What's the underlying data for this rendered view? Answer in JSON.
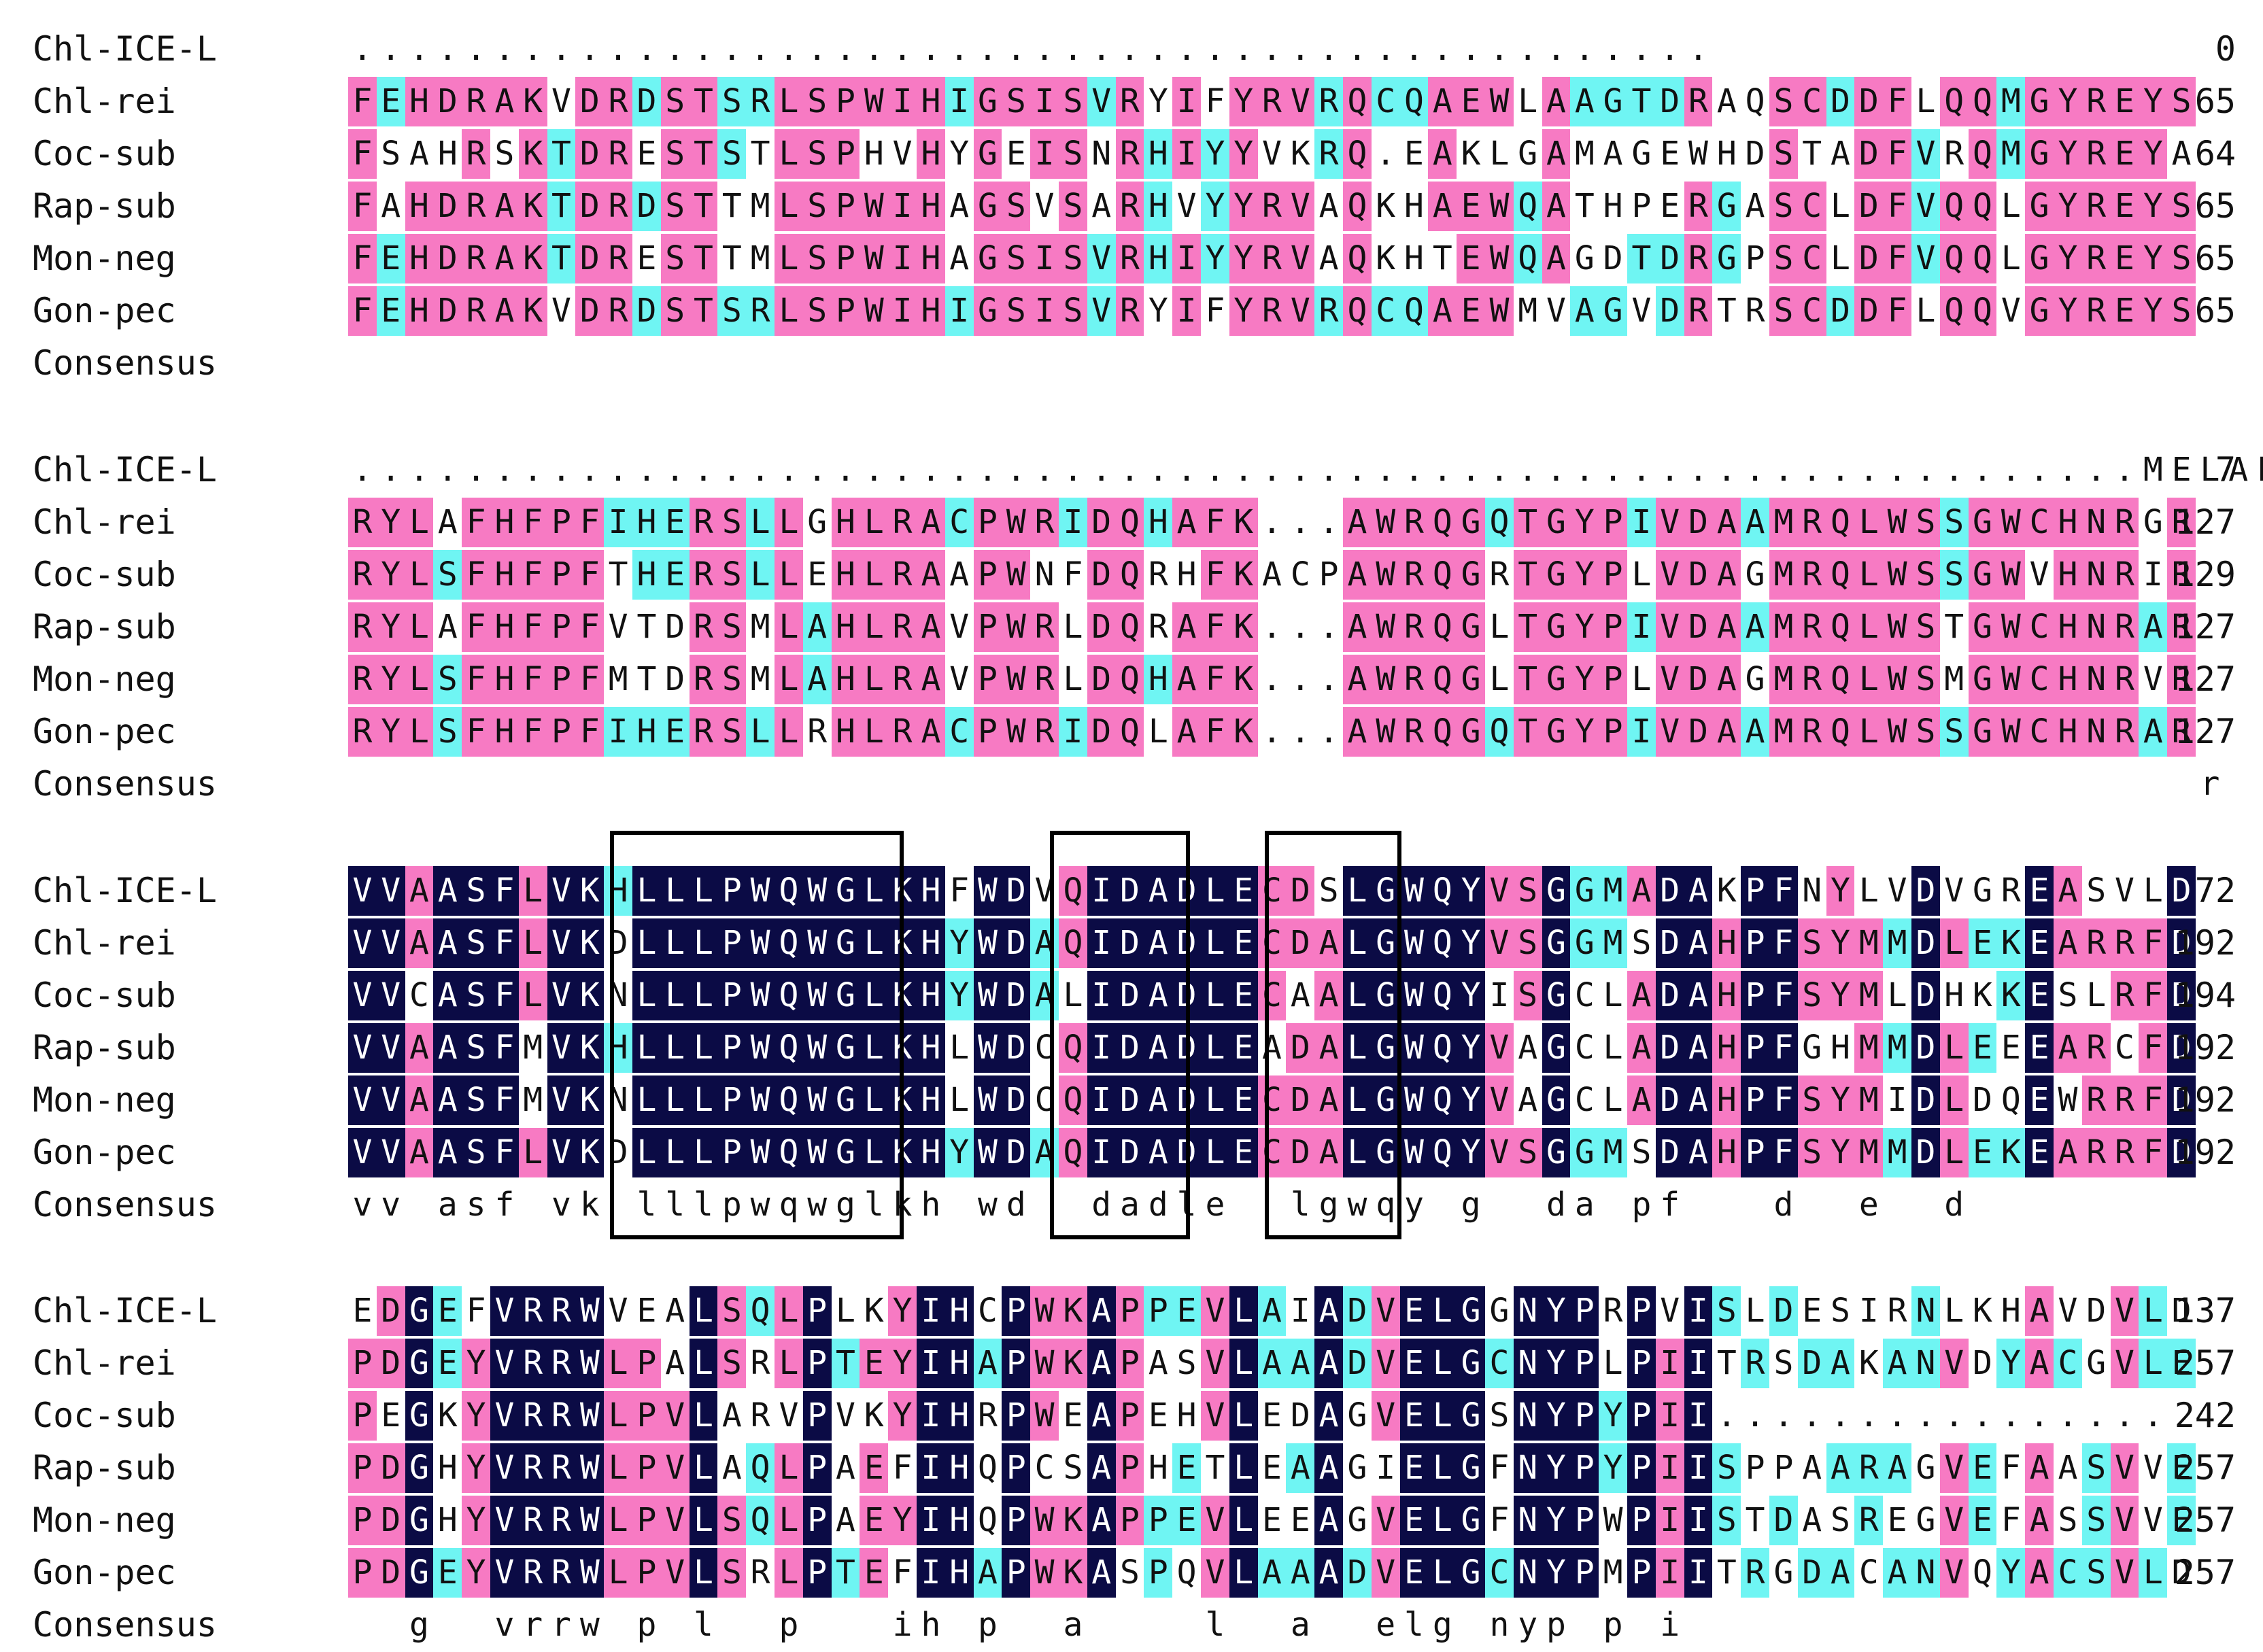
{
  "colors": {
    "identical": "#0b0b45",
    "high": "#f77ac3",
    "partial": "#6ff5f3"
  },
  "blocks": [
    {
      "rows": [
        {
          "name": "Chl-ICE-L",
          "seq": "................................................",
          "num": "0"
        },
        {
          "name": "Chl-rei",
          "seq": "FEHDRAKVDRDSTSRLSPWIHIGSISVRYIFYRVRQCQAEWLAAGTDRAQSCDDFLQQMGYREYS",
          "num": "65"
        },
        {
          "name": "Coc-sub",
          "seq": "FSAHRSKTDRESTSTLSPHVHYGEISNRHIYYVKRQ.EAKLGAMAGEWHDSTADFVRQMGYREYA",
          "num": "64"
        },
        {
          "name": "Rap-sub",
          "seq": "FAHDRAKTDRDSTTMLSPWIHAGSVSARHVYYRVAQKHAEWQATHPERGASCLDFVQQLGYREYS",
          "num": "65"
        },
        {
          "name": "Mon-neg",
          "seq": "FEHDRAKTDRESTTMLSPWIHAGSISVRHIYYRVAQKHTEWQAGDTDRGPSCLDFVQQLGYREYS",
          "num": "65"
        },
        {
          "name": "Gon-pec",
          "seq": "FEHDRAKVDRDSTSRLSPWIHIGSISVRYIFYRVRQCQAEWMVAGVDRTRSCDDFLQQVGYREYS",
          "num": "65"
        }
      ],
      "consensus_label": "Consensus",
      "consensus": ""
    },
    {
      "rows": [
        {
          "name": "Chl-ICE-L",
          "seq": "...............................................................MELALMR",
          "num": "7"
        },
        {
          "name": "Chl-rei",
          "seq": "RYLAFHFPFIHERSLLGHLRACPWRIDQHAFK...AWRQGQTGYPIVDAAMRQLWSSGWCHNRGR",
          "num": "127"
        },
        {
          "name": "Coc-sub",
          "seq": "RYLSFHFPFTHERSLLEHLRAAPWNFDQRHFKACPAWRQGRTGYPLVDAGMRQLWSSGWVHNRIR",
          "num": "129"
        },
        {
          "name": "Rap-sub",
          "seq": "RYLAFHFPFVTDRSMLAHLRAVPWRLDQRAFK...AWRQGLTGYPIVDAAMRQLWSTGWCHNRAR",
          "num": "127"
        },
        {
          "name": "Mon-neg",
          "seq": "RYLSFHFPFMTDRSMLAHLRAVPWRLDQHAFK...AWRQGLTGYPLVDAGMRQLWSMGWCHNRVR",
          "num": "127"
        },
        {
          "name": "Gon-pec",
          "seq": "RYLSFHFPFIHERSLLRHLRACPWRIDQLAFK...AWRQGQTGYPIVDAAMRQLWSSGWCHNRAR",
          "num": "127"
        }
      ],
      "consensus_label": "Consensus",
      "consensus": "                                                                 r"
    },
    {
      "rows": [
        {
          "name": "Chl-ICE-L",
          "seq": "VVAASFLVKHLLLPWQWGLKHFWDVQIDADLECDSLGWQYVSGGMADAKPFNYLVDVGREASVLD",
          "num": "72"
        },
        {
          "name": "Chl-rei",
          "seq": "VVAASFLVKDLLLPWQWGLKHYWDAQIDADLECDALGWQYVSGGMSDAHPFSYMMDLEKEARRFD",
          "num": "192"
        },
        {
          "name": "Coc-sub",
          "seq": "VVCASFLVKNLLLPWQWGLKHYWDALIDADLECAALGWQYISGCLADAHPFSYMLDHKKESLRFD",
          "num": "194"
        },
        {
          "name": "Rap-sub",
          "seq": "VVAASFMVKHLLLPWQWGLKHLWDCQIDADLEADALGWQYVAGCLADAHPFGHMMDLEEEARCFD",
          "num": "192"
        },
        {
          "name": "Mon-neg",
          "seq": "VVAASFMVKNLLLPWQWGLKHLWDCQIDADLECDALGWQYVAGCLADAHPFSYMIDLDQEWRRFD",
          "num": "192"
        },
        {
          "name": "Gon-pec",
          "seq": "VVAASFLVKDLLLPWQWGLKHYWDAQIDADLECDALGWQYVSGGMSDAHPFSYMMDLEKEARRFD",
          "num": "192"
        }
      ],
      "consensus_label": "Consensus",
      "consensus": "vv asf vk lllpwqwglkh wd  dadle  lgwqy g  da pf   d  e  d"
    },
    {
      "rows": [
        {
          "name": "Chl-ICE-L",
          "seq": "EDGEFVRRWVEALSQLPLKYIHCPWKAPPEVLAIADVELGGNYPRPVISLDESIRNLKHAVDVLD",
          "num": "137"
        },
        {
          "name": "Chl-rei",
          "seq": "PDGEYVRRWLPALSRLPTEYIHAPWKAPASVLAAADVELGCNYPLPIITRSDAKANVDYACGVLE",
          "num": "257"
        },
        {
          "name": "Coc-sub",
          "seq": "PEGKYVRRWLPVLARVPVKYIHRPWEAPEHVLEDAGVELGSNYPYPII................",
          "num": "242"
        },
        {
          "name": "Rap-sub",
          "seq": "PDGHYVRRWLPVLAQLPAEFIHQPCSAPHETLEAAGIELGFNYPYPIISPPAARAGVEFAASVVE",
          "num": "257"
        },
        {
          "name": "Mon-neg",
          "seq": "PDGHYVRRWLPVLSQLPAEYIHQPWKAPPEVLEEAGVELGFNYPWPIISTDASREGVEFASSVVE",
          "num": "257"
        },
        {
          "name": "Gon-pec",
          "seq": "PDGEYVRRWLPVLSRLPTEFIHAPWKASPQVLAAADVELGCNYPMPIITRGDACANVQYACSVLD",
          "num": "257"
        }
      ],
      "consensus_label": "Consensus",
      "consensus": "  g  vrrw p l  p   ih p  a    l  a  elg nyp p i"
    }
  ]
}
